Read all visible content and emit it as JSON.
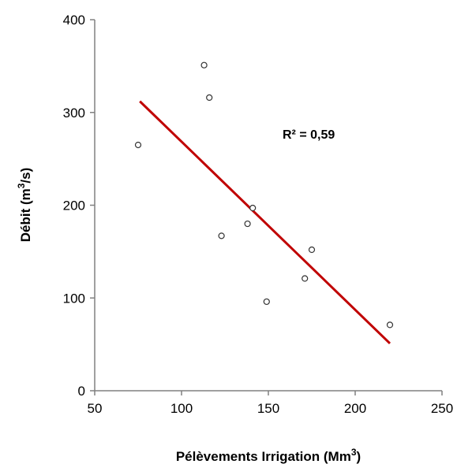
{
  "chart_data": {
    "type": "scatter",
    "xlabel": "Pélèvements Irrigation (Mm3)",
    "xlabel_main": "Pélèvements Irrigation (Mm",
    "xlabel_sup": "3",
    "xlabel_end": ")",
    "ylabel": "Débit (m3/s)",
    "ylabel_main": "Débit (m",
    "ylabel_sup": "3",
    "ylabel_end": "/s)",
    "xlim": [
      50,
      250
    ],
    "ylim": [
      0,
      400
    ],
    "x_ticks": [
      "50",
      "100",
      "150",
      "200",
      "250"
    ],
    "y_ticks": [
      "0",
      "100",
      "200",
      "300",
      "400"
    ],
    "series": [
      {
        "points": [
          {
            "x": 75,
            "y": 265
          },
          {
            "x": 113,
            "y": 351
          },
          {
            "x": 116,
            "y": 316
          },
          {
            "x": 123,
            "y": 167
          },
          {
            "x": 138,
            "y": 180
          },
          {
            "x": 141,
            "y": 197
          },
          {
            "x": 149,
            "y": 96
          },
          {
            "x": 171,
            "y": 121
          },
          {
            "x": 175,
            "y": 152
          },
          {
            "x": 220,
            "y": 71
          }
        ]
      }
    ],
    "trendline": {
      "x_start": 76,
      "y_start": 312,
      "x_end": 220,
      "y_end": 51,
      "color": "#c00000"
    },
    "annotation": "R² = 0,59",
    "colors": {
      "marker_stroke": "#333333",
      "marker_fill": "#ffffff",
      "axis": "#808080",
      "trendline": "#c00000"
    },
    "grid": false,
    "legend": "none"
  }
}
